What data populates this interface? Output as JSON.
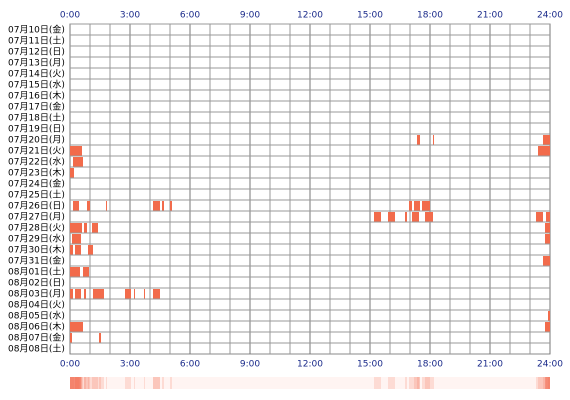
{
  "chart_data": {
    "type": "timeline",
    "color": "#f26b4b",
    "xlim": [
      0,
      24
    ],
    "xticks": [
      {
        "value": 0,
        "label": "0:00"
      },
      {
        "value": 3,
        "label": "3:00"
      },
      {
        "value": 6,
        "label": "6:00"
      },
      {
        "value": 9,
        "label": "9:00"
      },
      {
        "value": 12,
        "label": "12:00"
      },
      {
        "value": 15,
        "label": "15:00"
      },
      {
        "value": 18,
        "label": "18:00"
      },
      {
        "value": 21,
        "label": "21:00"
      },
      {
        "value": 24,
        "label": "24:00"
      }
    ],
    "rows": [
      {
        "label": "07月10日(金)",
        "segments": []
      },
      {
        "label": "07月11日(土)",
        "segments": []
      },
      {
        "label": "07月12日(日)",
        "segments": []
      },
      {
        "label": "07月13日(月)",
        "segments": []
      },
      {
        "label": "07月14日(火)",
        "segments": []
      },
      {
        "label": "07月15日(水)",
        "segments": []
      },
      {
        "label": "07月16日(木)",
        "segments": []
      },
      {
        "label": "07月17日(金)",
        "segments": []
      },
      {
        "label": "07月18日(土)",
        "segments": []
      },
      {
        "label": "07月19日(日)",
        "segments": []
      },
      {
        "label": "07月20日(月)",
        "segments": [
          [
            17.35,
            17.5
          ],
          [
            18.15,
            18.2
          ],
          [
            23.65,
            24
          ]
        ]
      },
      {
        "label": "07月21日(火)",
        "segments": [
          [
            0,
            0.6
          ],
          [
            23.4,
            24
          ]
        ]
      },
      {
        "label": "07月22日(水)",
        "segments": [
          [
            0.15,
            0.65
          ]
        ]
      },
      {
        "label": "07月23日(木)",
        "segments": [
          [
            0,
            0.2
          ]
        ]
      },
      {
        "label": "07月24日(金)",
        "segments": []
      },
      {
        "label": "07月25日(土)",
        "segments": []
      },
      {
        "label": "07月26日(日)",
        "segments": [
          [
            0.15,
            0.45
          ],
          [
            0.85,
            1.0
          ],
          [
            1.8,
            1.85
          ],
          [
            4.15,
            4.5
          ],
          [
            4.6,
            4.7
          ],
          [
            5.0,
            5.1
          ],
          [
            16.95,
            17.1
          ],
          [
            17.2,
            17.5
          ],
          [
            17.6,
            18.0
          ]
        ]
      },
      {
        "label": "07月27日(月)",
        "segments": [
          [
            15.2,
            15.55
          ],
          [
            15.9,
            16.25
          ],
          [
            16.75,
            16.85
          ],
          [
            17.1,
            17.45
          ],
          [
            17.75,
            18.15
          ],
          [
            23.3,
            23.65
          ],
          [
            23.8,
            24
          ]
        ]
      },
      {
        "label": "07月28日(火)",
        "segments": [
          [
            0,
            0.6
          ],
          [
            0.7,
            0.85
          ],
          [
            1.1,
            1.4
          ],
          [
            23.75,
            24
          ]
        ]
      },
      {
        "label": "07月29日(水)",
        "segments": [
          [
            0.1,
            0.55
          ],
          [
            23.75,
            24
          ]
        ]
      },
      {
        "label": "07月30日(木)",
        "segments": [
          [
            0,
            0.15
          ],
          [
            0.25,
            0.55
          ],
          [
            0.9,
            1.15
          ]
        ]
      },
      {
        "label": "07月31日(金)",
        "segments": [
          [
            23.65,
            24
          ]
        ]
      },
      {
        "label": "08月01日(土)",
        "segments": [
          [
            0,
            0.5
          ],
          [
            0.65,
            0.95
          ]
        ]
      },
      {
        "label": "08月02日(日)",
        "segments": []
      },
      {
        "label": "08月03日(月)",
        "segments": [
          [
            0,
            0.15
          ],
          [
            0.25,
            0.55
          ],
          [
            0.7,
            0.8
          ],
          [
            1.15,
            1.7
          ],
          [
            2.75,
            3.05
          ],
          [
            3.2,
            3.25
          ],
          [
            3.7,
            3.75
          ],
          [
            4.15,
            4.5
          ]
        ]
      },
      {
        "label": "08月04日(火)",
        "segments": []
      },
      {
        "label": "08月05日(水)",
        "segments": [
          [
            23.9,
            24
          ]
        ]
      },
      {
        "label": "08月06日(木)",
        "segments": [
          [
            0,
            0.65
          ],
          [
            23.75,
            24
          ]
        ]
      },
      {
        "label": "08月07日(金)",
        "segments": [
          [
            0,
            0.1
          ],
          [
            1.45,
            1.55
          ]
        ]
      },
      {
        "label": "08月08日(土)",
        "segments": []
      }
    ]
  }
}
